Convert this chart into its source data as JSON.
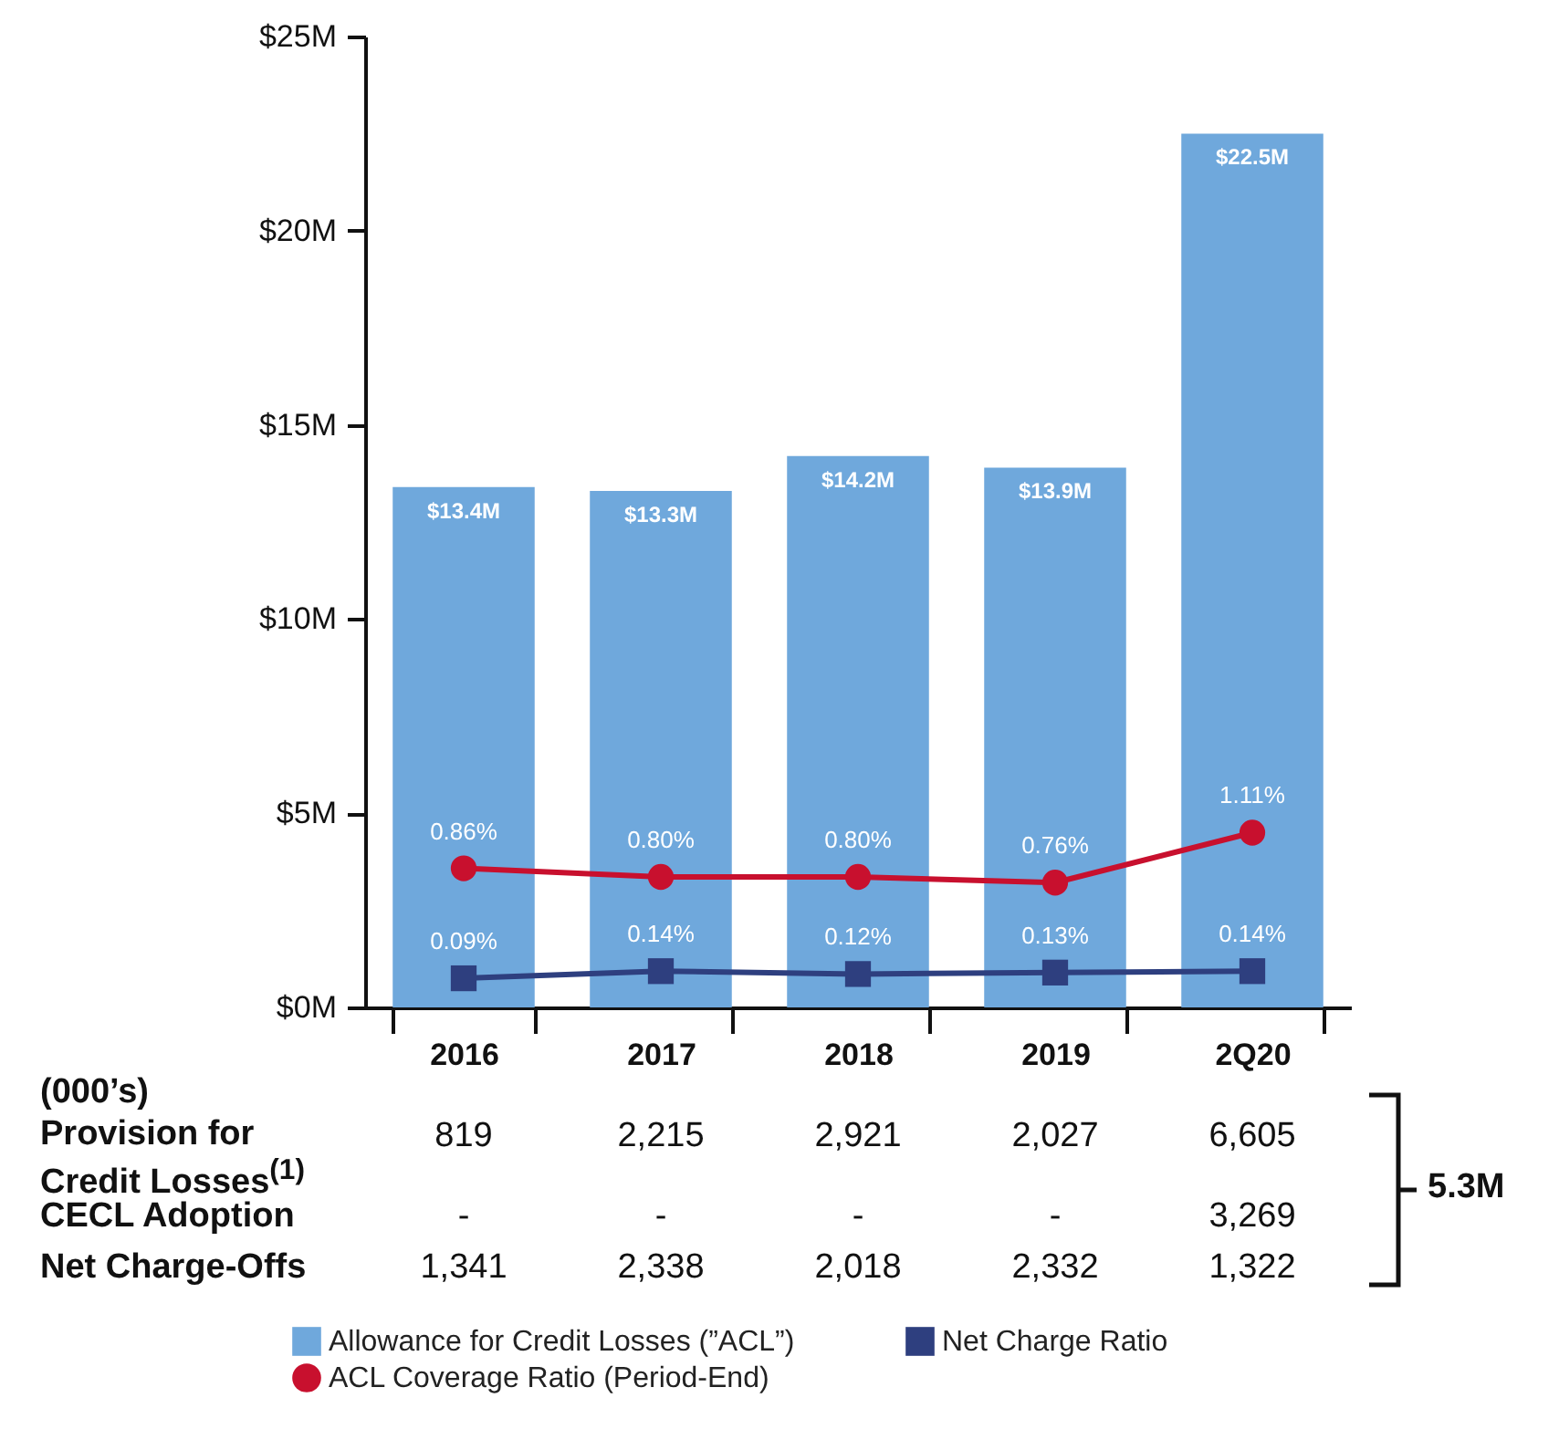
{
  "chart_data": {
    "type": "bar",
    "categories": [
      "2016",
      "2017",
      "2018",
      "2019",
      "2Q20"
    ],
    "series": [
      {
        "name": "Allowance for Credit Losses (”ACL”)",
        "color": "#6fa8dc",
        "values": [
          13.4,
          13.3,
          14.2,
          13.9,
          22.5
        ],
        "value_labels": [
          "$13.4M",
          "$13.3M",
          "$14.2M",
          "$13.9M",
          "$22.5M"
        ]
      },
      {
        "name": "ACL Coverage Ratio (Period-End)",
        "type": "line",
        "axis": "y2",
        "marker": "circle",
        "color": "#c8102e",
        "values": [
          0.86,
          0.8,
          0.8,
          0.76,
          1.11
        ],
        "value_labels": [
          "0.86%",
          "0.80%",
          "0.80%",
          "0.76%",
          "1.11%"
        ]
      },
      {
        "name": "Net Charge Ratio",
        "type": "line",
        "axis": "y2",
        "marker": "square",
        "color": "#2e3f7f",
        "values": [
          0.09,
          0.14,
          0.12,
          0.13,
          0.14
        ],
        "value_labels": [
          "0.09%",
          "0.14%",
          "0.12%",
          "0.13%",
          "0.14%"
        ]
      }
    ],
    "ylim": [
      0,
      25
    ],
    "yticks": [
      {
        "value": 0,
        "label": "$0M"
      },
      {
        "value": 5,
        "label": "$5M"
      },
      {
        "value": 10,
        "label": "$10M"
      },
      {
        "value": 15,
        "label": "$15M"
      },
      {
        "value": 20,
        "label": "$20M"
      },
      {
        "value": 25,
        "label": "$25M"
      }
    ],
    "tick_labels": "xy",
    "legend": "bottom",
    "annotations": [
      "(000’s)",
      "Provision for Credit Losses$^{(1)}$",
      "819",
      "2,215",
      "2,921",
      "2,027",
      "6,605",
      "CECL Adoption",
      "-",
      "-",
      "-",
      "-",
      "3,269",
      "Net Charge-Offs",
      "1,341",
      "2,338",
      "2,018",
      "2,332",
      "1,322",
      "5.3M"
    ]
  }
}
